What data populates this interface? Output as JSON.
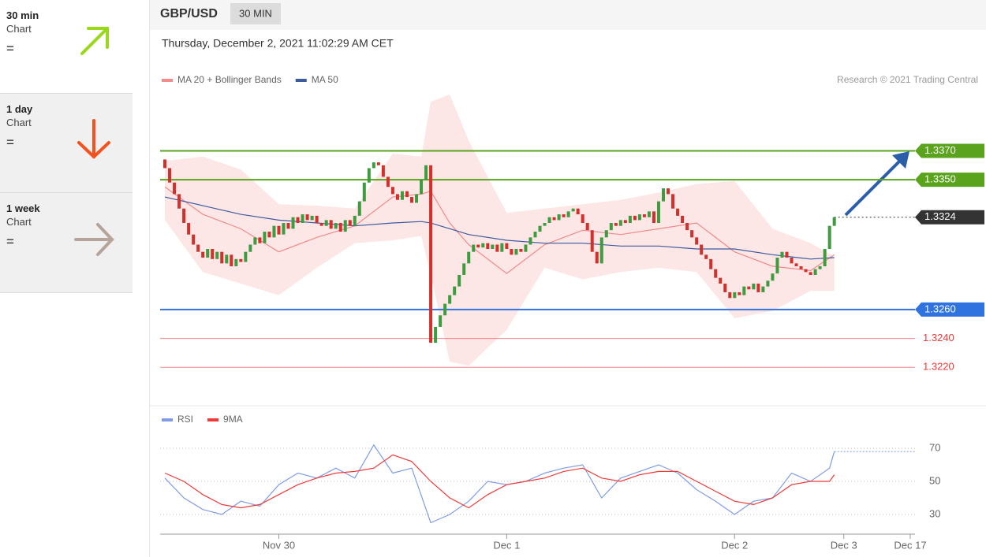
{
  "sidebar": [
    {
      "period": "30 min",
      "label": "Chart",
      "signal": "="
    },
    {
      "period": "1 day",
      "label": "Chart",
      "signal": "="
    },
    {
      "period": "1 week",
      "label": "Chart",
      "signal": "="
    }
  ],
  "header": {
    "symbol": "GBP/USD",
    "interval": "30 MIN",
    "datetime": "Thursday, December 2, 2021 11:02:29 AM CET"
  },
  "chart_data": [
    {
      "type": "candlestick",
      "credit": "Research © 2021 Trading Central",
      "up_color": "#3f9b3f",
      "down_color": "#d3302b",
      "first_open": 1.3364,
      "x": [
        0,
        1,
        2,
        3,
        4,
        5,
        6,
        7,
        8,
        9,
        10,
        11,
        12,
        13,
        14,
        15,
        16,
        17,
        18,
        19,
        20,
        21,
        22,
        23,
        24,
        25,
        26,
        27,
        28,
        29,
        30,
        31,
        32,
        33,
        34,
        35,
        36,
        37,
        38,
        39,
        40,
        41,
        42,
        43,
        44,
        45,
        46,
        47,
        48,
        49,
        50,
        51,
        52,
        53,
        54,
        55,
        56,
        57,
        58,
        59,
        60,
        61,
        62,
        63,
        64,
        65,
        66,
        67,
        68,
        69,
        70,
        71,
        72,
        73,
        74,
        75,
        76,
        77,
        78,
        79,
        80,
        81,
        82,
        83,
        84,
        85,
        86,
        87,
        88,
        89,
        90,
        91,
        92,
        93,
        94,
        95,
        96,
        97,
        98,
        99,
        100,
        101,
        102,
        103,
        104,
        105,
        106,
        107,
        108,
        109,
        110,
        111,
        112,
        113,
        114,
        115,
        116,
        117,
        118,
        119,
        120,
        121,
        122,
        123,
        124,
        125,
        126,
        127,
        128,
        129,
        130,
        131,
        132,
        133,
        134,
        135,
        136,
        137,
        138,
        139,
        140,
        141
      ],
      "close": [
        1.3358,
        1.3348,
        1.334,
        1.333,
        1.332,
        1.3312,
        1.3305,
        1.33,
        1.3296,
        1.3302,
        1.3295,
        1.33,
        1.3292,
        1.3298,
        1.329,
        1.3295,
        1.3293,
        1.33,
        1.3305,
        1.331,
        1.3306,
        1.3314,
        1.331,
        1.3318,
        1.3312,
        1.332,
        1.3316,
        1.3324,
        1.332,
        1.3326,
        1.3322,
        1.3325,
        1.332,
        1.3318,
        1.3322,
        1.3316,
        1.332,
        1.3314,
        1.3322,
        1.3318,
        1.3325,
        1.3335,
        1.3348,
        1.3358,
        1.3362,
        1.336,
        1.3352,
        1.3345,
        1.334,
        1.3336,
        1.3342,
        1.3338,
        1.3334,
        1.334,
        1.335,
        1.336,
        1.3237,
        1.3248,
        1.3256,
        1.3264,
        1.327,
        1.3276,
        1.3284,
        1.3292,
        1.33,
        1.3305,
        1.3303,
        1.3306,
        1.3302,
        1.3305,
        1.33,
        1.3306,
        1.3302,
        1.3298,
        1.3302,
        1.33,
        1.3305,
        1.331,
        1.3314,
        1.3318,
        1.332,
        1.3324,
        1.3322,
        1.3326,
        1.3324,
        1.3328,
        1.333,
        1.3326,
        1.332,
        1.3315,
        1.33,
        1.3292,
        1.331,
        1.3315,
        1.332,
        1.3318,
        1.3322,
        1.332,
        1.3325,
        1.3322,
        1.3326,
        1.3324,
        1.3328,
        1.332,
        1.3335,
        1.3344,
        1.334,
        1.333,
        1.3325,
        1.332,
        1.3315,
        1.331,
        1.3305,
        1.3298,
        1.3295,
        1.3288,
        1.3282,
        1.3278,
        1.3272,
        1.3268,
        1.3272,
        1.327,
        1.3276,
        1.3274,
        1.3278,
        1.3272,
        1.3276,
        1.328,
        1.3285,
        1.3296,
        1.33,
        1.3296,
        1.3292,
        1.329,
        1.3288,
        1.3286,
        1.3284,
        1.3288,
        1.329,
        1.3302,
        1.3318,
        1.3324
      ],
      "series": [
        {
          "name": "MA 20 + Bollinger Bands",
          "color": "#f28b8b",
          "band_color": "#fde0e0",
          "x": [
            0,
            8,
            16,
            24,
            32,
            40,
            48,
            54,
            56,
            60,
            64,
            72,
            80,
            88,
            96,
            104,
            112,
            120,
            128,
            136,
            141
          ],
          "values": [
            1.3345,
            1.3326,
            1.3316,
            1.33,
            1.331,
            1.3318,
            1.3338,
            1.334,
            1.3342,
            1.332,
            1.3305,
            1.3285,
            1.3305,
            1.3315,
            1.3312,
            1.3316,
            1.332,
            1.33,
            1.329,
            1.3287,
            1.3298
          ],
          "upper": [
            1.3363,
            1.3366,
            1.3357,
            1.3333,
            1.3332,
            1.333,
            1.3368,
            1.3366,
            1.3404,
            1.3409,
            1.3377,
            1.3327,
            1.333,
            1.3333,
            1.3336,
            1.3341,
            1.3347,
            1.3349,
            1.3316,
            1.3306,
            1.3297
          ],
          "lower": [
            1.3322,
            1.3286,
            1.3278,
            1.327,
            1.3289,
            1.3306,
            1.3308,
            1.3311,
            1.3284,
            1.3224,
            1.3221,
            1.3246,
            1.3289,
            1.3281,
            1.3286,
            1.3289,
            1.3286,
            1.3254,
            1.3259,
            1.3273,
            1.3273
          ]
        },
        {
          "name": "MA 50",
          "color": "#3d5a9e",
          "x": [
            0,
            8,
            16,
            24,
            32,
            40,
            48,
            54,
            56,
            60,
            64,
            72,
            80,
            88,
            96,
            104,
            112,
            120,
            128,
            136,
            141
          ],
          "values": [
            1.3338,
            1.3332,
            1.3326,
            1.3322,
            1.332,
            1.3318,
            1.332,
            1.3321,
            1.332,
            1.3316,
            1.3312,
            1.3308,
            1.3306,
            1.3306,
            1.3304,
            1.3304,
            1.3302,
            1.3302,
            1.3298,
            1.3295,
            1.3296
          ]
        }
      ],
      "levels": [
        {
          "value": 1.337,
          "label": "1.3370",
          "color": "#5aa31c",
          "style": "badge"
        },
        {
          "value": 1.335,
          "label": "1.3350",
          "color": "#5aa31c",
          "style": "badge"
        },
        {
          "value": 1.3324,
          "label": "1.3324",
          "color": "#333333",
          "style": "current"
        },
        {
          "value": 1.326,
          "label": "1.3260",
          "color": "#2f73e0",
          "style": "badge"
        },
        {
          "value": 1.324,
          "label": "1.3240",
          "color": "#f03a3a",
          "style": "text"
        },
        {
          "value": 1.322,
          "label": "1.3220",
          "color": "#f03a3a",
          "style": "text"
        }
      ],
      "xlim": [
        -1,
        158
      ],
      "ylim": [
        1.3195,
        1.3409
      ]
    },
    {
      "type": "line",
      "x": [
        0,
        4,
        8,
        12,
        16,
        20,
        24,
        28,
        32,
        36,
        40,
        44,
        48,
        52,
        56,
        60,
        64,
        68,
        72,
        76,
        80,
        84,
        88,
        92,
        96,
        100,
        104,
        108,
        112,
        116,
        120,
        124,
        128,
        132,
        136,
        140,
        141
      ],
      "series": [
        {
          "name": "RSI",
          "color": "#7f9de6",
          "values": [
            52,
            40,
            33,
            30,
            38,
            35,
            48,
            55,
            52,
            58,
            52,
            72,
            55,
            58,
            25,
            30,
            38,
            50,
            48,
            50,
            55,
            58,
            60,
            40,
            52,
            56,
            60,
            55,
            45,
            38,
            30,
            38,
            40,
            55,
            50,
            58,
            68
          ]
        },
        {
          "name": "9MA",
          "color": "#f03a3a",
          "values": [
            55,
            50,
            42,
            36,
            34,
            36,
            42,
            48,
            52,
            55,
            56,
            58,
            66,
            62,
            50,
            40,
            34,
            42,
            48,
            50,
            52,
            56,
            58,
            52,
            50,
            54,
            56,
            56,
            50,
            44,
            38,
            36,
            40,
            48,
            50,
            50,
            54
          ]
        }
      ],
      "xlim": [
        -1,
        158
      ],
      "ylim": [
        20,
        93
      ],
      "yticks": [
        30,
        50,
        70
      ],
      "xticks": [
        {
          "value": 24,
          "label": "Nov 30"
        },
        {
          "value": 72,
          "label": "Dec 1"
        },
        {
          "value": 120,
          "label": "Dec 2"
        },
        {
          "value": 143,
          "label": "Dec 3"
        },
        {
          "value": 157,
          "label": "Dec 17"
        }
      ]
    }
  ]
}
